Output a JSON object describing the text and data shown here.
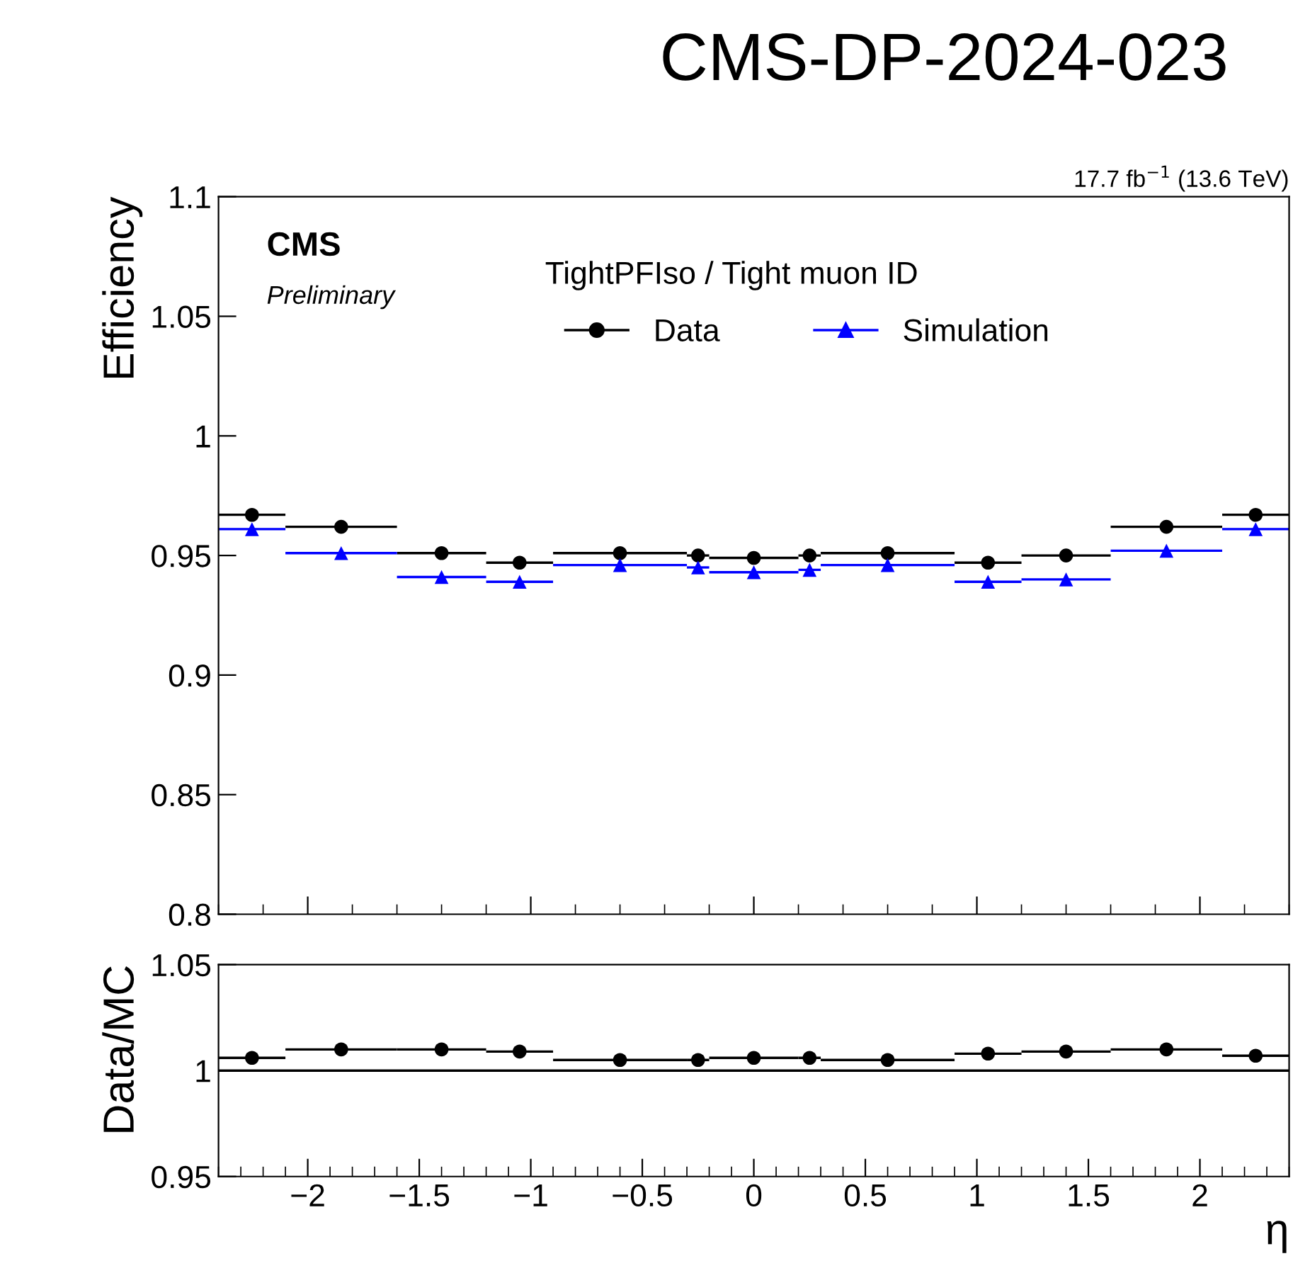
{
  "chart_data": [
    {
      "type": "scatter",
      "title": "CMS-DP-2024-023",
      "ylabel": "Efficiency",
      "annotations": [
        "CMS",
        "Preliminary",
        "TightPFIso / Tight muon ID",
        "17.7 fb$^{−1}$ (13.6 TeV)"
      ],
      "x": [
        -2.25,
        -1.85,
        -1.4,
        -1.05,
        -0.6,
        -0.25,
        0,
        0.25,
        0.6,
        1.05,
        1.4,
        1.85,
        2.25
      ],
      "series": [
        {
          "name": "Data",
          "color": "#000000",
          "marker": "circle",
          "values": [
            0.967,
            0.962,
            0.951,
            0.947,
            0.951,
            0.95,
            0.949,
            0.95,
            0.951,
            0.947,
            0.95,
            0.962,
            0.967
          ],
          "xerrors": [
            [
              -2.4,
              -2.1
            ],
            [
              -2.1,
              -1.6
            ],
            [
              -1.6,
              -1.2
            ],
            [
              -1.2,
              -0.9
            ],
            [
              -0.9,
              -0.3
            ],
            [
              -0.3,
              -0.2
            ],
            [
              -0.2,
              0.2
            ],
            [
              0.2,
              0.3
            ],
            [
              0.3,
              0.9
            ],
            [
              0.9,
              1.2
            ],
            [
              1.2,
              1.6
            ],
            [
              1.6,
              2.1
            ],
            [
              2.1,
              2.4
            ]
          ]
        },
        {
          "name": "Simulation",
          "color": "#0000ff",
          "marker": "triangle",
          "values": [
            0.961,
            0.951,
            0.941,
            0.939,
            0.946,
            0.945,
            0.943,
            0.944,
            0.946,
            0.939,
            0.94,
            0.952,
            0.961
          ],
          "xerrors": [
            [
              -2.4,
              -2.1
            ],
            [
              -2.1,
              -1.6
            ],
            [
              -1.6,
              -1.2
            ],
            [
              -1.2,
              -0.9
            ],
            [
              -0.9,
              -0.3
            ],
            [
              -0.3,
              -0.2
            ],
            [
              -0.2,
              0.2
            ],
            [
              0.2,
              0.3
            ],
            [
              0.3,
              0.9
            ],
            [
              0.9,
              1.2
            ],
            [
              1.2,
              1.6
            ],
            [
              1.6,
              2.1
            ],
            [
              2.1,
              2.4
            ]
          ]
        }
      ],
      "xlim": [
        -2.4,
        2.4
      ],
      "ylim": [
        0.8,
        1.1
      ],
      "yticks": [
        0.8,
        0.85,
        0.9,
        0.95,
        1,
        1.05,
        1.1
      ],
      "tick_labels": "y",
      "legend": "top"
    },
    {
      "type": "scatter",
      "ylabel": "Data/MC",
      "xlabel": "η",
      "x": [
        -2.25,
        -1.85,
        -1.4,
        -1.05,
        -0.6,
        -0.25,
        0,
        0.25,
        0.6,
        1.05,
        1.4,
        1.85,
        2.25
      ],
      "series": [
        {
          "color": "#000000",
          "marker": "circle",
          "values": [
            1.006,
            1.01,
            1.01,
            1.009,
            1.005,
            1.005,
            1.006,
            1.006,
            1.005,
            1.008,
            1.009,
            1.01,
            1.007
          ],
          "xerrors": [
            [
              -2.4,
              -2.1
            ],
            [
              -2.1,
              -1.6
            ],
            [
              -1.6,
              -1.2
            ],
            [
              -1.2,
              -0.9
            ],
            [
              -0.9,
              -0.3
            ],
            [
              -0.3,
              -0.2
            ],
            [
              -0.2,
              0.2
            ],
            [
              0.2,
              0.3
            ],
            [
              0.3,
              0.9
            ],
            [
              0.9,
              1.2
            ],
            [
              1.2,
              1.6
            ],
            [
              1.6,
              2.1
            ],
            [
              2.1,
              2.4
            ]
          ]
        }
      ],
      "ref_lines": [
        {
          "axis": "y",
          "value": 1,
          "color": "#000000"
        }
      ],
      "xlim": [
        -2.4,
        2.4
      ],
      "xticks": [
        {
          "value": -2,
          "label": "−2"
        },
        {
          "value": -1.5,
          "label": "−1.5"
        },
        {
          "value": -1,
          "label": "−1"
        },
        {
          "value": -0.5,
          "label": "−0.5"
        },
        0,
        0.5,
        1,
        1.5,
        2
      ],
      "ylim": [
        0.95,
        1.05
      ],
      "yticks": [
        0.95,
        1,
        1.05
      ]
    }
  ]
}
